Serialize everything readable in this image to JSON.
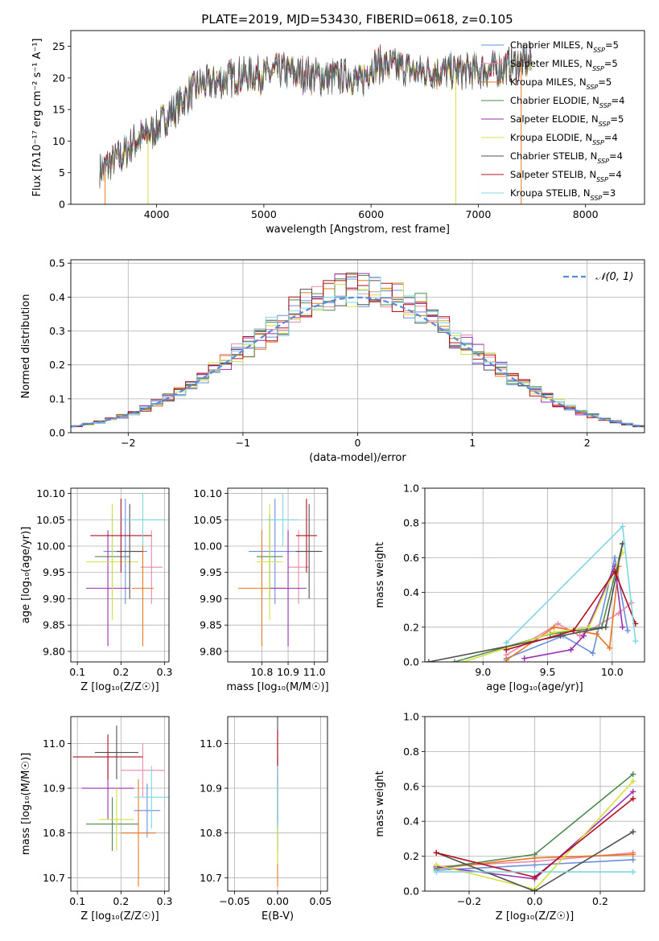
{
  "figure": {
    "title": "PLATE=2019, MJD=53430, FIBERID=0618, z=0.105"
  },
  "colors": {
    "Chabrier MILES": "#6a8fdc",
    "Salpeter MILES": "#e88aa8",
    "Kroupa MILES": "#e87722",
    "Chabrier ELODIE": "#4f8a4f",
    "Salpeter ELODIE": "#9a2fb0",
    "Kroupa ELODIE": "#d4e040",
    "Chabrier STELIB": "#505050",
    "Salpeter STELIB": "#b01020",
    "Kroupa STELIB": "#7fd6e0"
  },
  "chart_data": [
    {
      "id": "spectrum",
      "type": "line",
      "xlabel": "wavelength [Angstrom, rest frame]",
      "ylabel": "Flux [fλ10⁻¹⁷ erg cm⁻² s⁻¹ A⁻¹]",
      "xlim": [
        3200,
        8550
      ],
      "ylim": [
        0,
        27.5
      ],
      "xticks": [
        4000,
        5000,
        6000,
        7000,
        8000
      ],
      "yticks": [
        0,
        5,
        10,
        15,
        20,
        25
      ],
      "envelope": {
        "x": [
          3500,
          3600,
          3700,
          3800,
          3900,
          4000,
          4100,
          4200,
          4300,
          4400,
          4500,
          4600,
          4800,
          5000,
          5100,
          5200,
          5400,
          5600,
          5800,
          5900,
          6000,
          6200,
          6400,
          6600,
          6800,
          7000,
          7200,
          7400,
          7500
        ],
        "y": [
          5.5,
          7,
          8,
          10,
          11,
          12,
          14,
          15.5,
          17.5,
          19,
          19,
          19.5,
          20.5,
          20.5,
          21,
          21,
          20.5,
          20,
          20.5,
          19,
          22,
          22,
          21,
          21,
          21,
          21,
          21.5,
          22.5,
          22.5
        ]
      },
      "legend": {
        "position": "upper right",
        "entries": [
          "Chabrier MILES, N_SSP=5",
          "Salpeter MILES, N_SSP=5",
          "Kroupa MILES, N_SSP=5",
          "Chabrier ELODIE, N_SSP=4",
          "Salpeter ELODIE, N_SSP=5",
          "Kroupa ELODIE, N_SSP=4",
          "Chabrier STELIB, N_SSP=4",
          "Salpeter STELIB, N_SSP=4",
          "Kroupa STELIB, N_SSP=3"
        ]
      }
    },
    {
      "id": "residuals",
      "type": "line",
      "xlabel": "(data-model)/error",
      "ylabel": "Normed distribution",
      "xlim": [
        -2.5,
        2.5
      ],
      "ylim": [
        0,
        0.51
      ],
      "xticks": [
        -2,
        -1,
        0,
        1,
        2
      ],
      "yticks": [
        0.0,
        0.1,
        0.2,
        0.3,
        0.4,
        0.5
      ],
      "grid": true,
      "gaussian_label": "𝒩(0, 1)",
      "legend": {
        "position": "upper right"
      }
    },
    {
      "id": "age_vs_Z",
      "type": "scatter",
      "xlabel": "Z [log₁₀(Z/Z☉)]",
      "ylabel": "age  [log₁₀(age/yr)]",
      "xlim": [
        0.085,
        0.31
      ],
      "ylim": [
        9.78,
        10.11
      ],
      "xticks": [
        0.1,
        0.2,
        0.3
      ],
      "yticks": [
        9.8,
        9.85,
        9.9,
        9.95,
        10.0,
        10.05,
        10.1
      ],
      "grid": true,
      "points": [
        {
          "series": "Chabrier MILES",
          "x": 0.21,
          "xerr": 0.05,
          "y": 9.99,
          "yerr": 0.1
        },
        {
          "series": "Salpeter MILES",
          "x": 0.27,
          "xerr": 0.025,
          "y": 9.96,
          "yerr": 0.07
        },
        {
          "series": "Kroupa MILES",
          "x": 0.25,
          "xerr": 0.025,
          "y": 9.92,
          "yerr": 0.11
        },
        {
          "series": "Chabrier ELODIE",
          "x": 0.18,
          "xerr": 0.04,
          "y": 9.98,
          "yerr": 0.08
        },
        {
          "series": "Salpeter ELODIE",
          "x": 0.17,
          "xerr": 0.05,
          "y": 9.92,
          "yerr": 0.11
        },
        {
          "series": "Kroupa ELODIE",
          "x": 0.18,
          "xerr": 0.06,
          "y": 9.97,
          "yerr": 0.11
        },
        {
          "series": "Chabrier STELIB",
          "x": 0.22,
          "xerr": 0.03,
          "y": 9.99,
          "yerr": 0.09
        },
        {
          "series": "Salpeter STELIB",
          "x": 0.2,
          "xerr": 0.07,
          "y": 10.02,
          "yerr": 0.07
        },
        {
          "series": "Kroupa STELIB",
          "x": 0.25,
          "xerr": 0.05,
          "y": 10.05,
          "yerr": 0.05
        }
      ]
    },
    {
      "id": "age_vs_mass",
      "type": "scatter",
      "xlabel": "mass [log₁₀(M/M☉)]",
      "ylabel": "",
      "xlim": [
        10.67,
        11.05
      ],
      "ylim": [
        9.78,
        10.11
      ],
      "xticks": [
        10.8,
        10.9,
        11.0
      ],
      "yticks": [
        9.8,
        9.85,
        9.9,
        9.95,
        10.0,
        10.05,
        10.1
      ],
      "grid": true,
      "points": [
        {
          "series": "Chabrier MILES",
          "x": 10.85,
          "xerr": 0.1,
          "y": 9.99,
          "yerr": 0.1
        },
        {
          "series": "Salpeter MILES",
          "x": 10.94,
          "xerr": 0.04,
          "y": 9.96,
          "yerr": 0.07
        },
        {
          "series": "Kroupa MILES",
          "x": 10.8,
          "xerr": 0.09,
          "y": 9.92,
          "yerr": 0.11
        },
        {
          "series": "Chabrier ELODIE",
          "x": 10.83,
          "xerr": 0.05,
          "y": 9.98,
          "yerr": 0.08
        },
        {
          "series": "Salpeter ELODIE",
          "x": 10.9,
          "xerr": 0.07,
          "y": 9.92,
          "yerr": 0.11
        },
        {
          "series": "Kroupa ELODIE",
          "x": 10.83,
          "xerr": 0.05,
          "y": 9.97,
          "yerr": 0.11
        },
        {
          "series": "Chabrier STELIB",
          "x": 10.98,
          "xerr": 0.05,
          "y": 9.99,
          "yerr": 0.09
        },
        {
          "series": "Salpeter STELIB",
          "x": 10.97,
          "xerr": 0.04,
          "y": 10.02,
          "yerr": 0.07
        },
        {
          "series": "Kroupa STELIB",
          "x": 10.88,
          "xerr": 0.06,
          "y": 10.05,
          "yerr": 0.05
        }
      ]
    },
    {
      "id": "weight_vs_age",
      "type": "line",
      "xlabel": "age  [log₁₀(age/yr)]",
      "ylabel": "mass weight",
      "xlim": [
        8.55,
        10.25
      ],
      "ylim": [
        0,
        1
      ],
      "xticks": [
        9.0,
        9.5,
        10.0
      ],
      "yticks": [
        0.0,
        0.2,
        0.4,
        0.6,
        0.8,
        1.0
      ],
      "grid": true,
      "series": [
        {
          "name": "Chabrier MILES",
          "x": [
            9.18,
            9.62,
            9.85,
            10.02,
            10.12
          ],
          "y": [
            0.02,
            0.15,
            0.05,
            0.6,
            0.18
          ]
        },
        {
          "name": "Salpeter MILES",
          "x": [
            9.18,
            9.58,
            9.75,
            10.05,
            10.15
          ],
          "y": [
            0.04,
            0.22,
            0.15,
            0.28,
            0.34
          ]
        },
        {
          "name": "Kroupa MILES",
          "x": [
            9.18,
            9.55,
            9.88,
            9.98,
            10.05
          ],
          "y": [
            0.01,
            0.2,
            0.16,
            0.08,
            0.55
          ]
        },
        {
          "name": "Chabrier ELODIE",
          "x": [
            8.78,
            9.52,
            9.92,
            10.08
          ],
          "y": [
            0.0,
            0.16,
            0.2,
            0.68
          ]
        },
        {
          "name": "Salpeter ELODIE",
          "x": [
            9.32,
            9.68,
            9.78,
            10.02,
            10.08
          ],
          "y": [
            0.02,
            0.07,
            0.15,
            0.55,
            0.2
          ]
        },
        {
          "name": "Kroupa ELODIE",
          "x": [
            8.85,
            9.55,
            9.82,
            10.08
          ],
          "y": [
            0.0,
            0.17,
            0.2,
            0.63
          ]
        },
        {
          "name": "Chabrier STELIB",
          "x": [
            8.58,
            9.6,
            9.95,
            10.08
          ],
          "y": [
            0.0,
            0.15,
            0.2,
            0.68
          ]
        },
        {
          "name": "Salpeter STELIB",
          "x": [
            9.18,
            9.7,
            10.02,
            10.18
          ],
          "y": [
            0.07,
            0.18,
            0.52,
            0.22
          ]
        },
        {
          "name": "Kroupa STELIB",
          "x": [
            9.18,
            10.08,
            10.18
          ],
          "y": [
            0.11,
            0.78,
            0.12
          ]
        }
      ]
    },
    {
      "id": "mass_vs_Z",
      "type": "scatter",
      "xlabel": "Z [log₁₀(Z/Z☉)]",
      "ylabel": "mass [log₁₀(M/M☉)]",
      "xlim": [
        0.085,
        0.31
      ],
      "ylim": [
        10.67,
        11.06
      ],
      "xticks": [
        0.1,
        0.2,
        0.3
      ],
      "yticks": [
        10.7,
        10.8,
        10.9,
        11.0
      ],
      "grid": true,
      "points": [
        {
          "series": "Chabrier MILES",
          "x": 0.26,
          "xerr": 0.03,
          "y": 10.85,
          "yerr": 0.06
        },
        {
          "series": "Salpeter MILES",
          "x": 0.25,
          "xerr": 0.05,
          "y": 10.94,
          "yerr": 0.06
        },
        {
          "series": "Kroupa MILES",
          "x": 0.24,
          "xerr": 0.04,
          "y": 10.8,
          "yerr": 0.12
        },
        {
          "series": "Chabrier ELODIE",
          "x": 0.18,
          "xerr": 0.06,
          "y": 10.82,
          "yerr": 0.06
        },
        {
          "series": "Salpeter ELODIE",
          "x": 0.17,
          "xerr": 0.06,
          "y": 10.9,
          "yerr": 0.07
        },
        {
          "series": "Kroupa ELODIE",
          "x": 0.19,
          "xerr": 0.04,
          "y": 10.83,
          "yerr": 0.07
        },
        {
          "series": "Chabrier STELIB",
          "x": 0.19,
          "xerr": 0.05,
          "y": 10.98,
          "yerr": 0.06
        },
        {
          "series": "Salpeter STELIB",
          "x": 0.17,
          "xerr": 0.08,
          "y": 10.97,
          "yerr": 0.05
        },
        {
          "series": "Kroupa STELIB",
          "x": 0.27,
          "xerr": 0.04,
          "y": 10.88,
          "yerr": 0.07
        }
      ]
    },
    {
      "id": "mass_vs_EBV",
      "type": "scatter",
      "xlabel": "E(B-V)",
      "ylabel": "",
      "xlim": [
        -0.058,
        0.058
      ],
      "ylim": [
        10.67,
        11.06
      ],
      "xticks": [
        -0.05,
        0.0,
        0.05
      ],
      "yticks": [
        10.7,
        10.8,
        10.9,
        11.0
      ],
      "grid": true,
      "points": [
        {
          "series": "Chabrier MILES",
          "x": 0.0,
          "y": 10.85,
          "yerr": 0.08
        },
        {
          "series": "Salpeter MILES",
          "x": 0.0,
          "y": 10.94,
          "yerr": 0.06
        },
        {
          "series": "Kroupa MILES",
          "x": 0.0,
          "y": 10.8,
          "yerr": 0.12
        },
        {
          "series": "Chabrier ELODIE",
          "x": 0.0,
          "y": 10.82,
          "yerr": 0.06
        },
        {
          "series": "Salpeter ELODIE",
          "x": 0.0,
          "y": 10.9,
          "yerr": 0.07
        },
        {
          "series": "Kroupa ELODIE",
          "x": 0.0,
          "y": 10.83,
          "yerr": 0.1
        },
        {
          "series": "Chabrier STELIB",
          "x": 0.0,
          "y": 10.98,
          "yerr": 0.16
        },
        {
          "series": "Salpeter STELIB",
          "x": 0.0,
          "y": 10.97,
          "yerr": 0.06
        },
        {
          "series": "Kroupa STELIB",
          "x": 0.0,
          "y": 10.88,
          "yerr": 0.07
        }
      ]
    },
    {
      "id": "weight_vs_Z",
      "type": "line",
      "xlabel": "Z [log₁₀(Z/Z☉)]",
      "ylabel": "mass weight",
      "xlim": [
        -0.335,
        0.335
      ],
      "ylim": [
        0,
        1
      ],
      "xticks": [
        -0.2,
        0.0,
        0.2
      ],
      "yticks": [
        0.0,
        0.2,
        0.4,
        0.6,
        0.8,
        1.0
      ],
      "grid": true,
      "series": [
        {
          "name": "Chabrier MILES",
          "x": [
            -0.3,
            0.0,
            0.3
          ],
          "y": [
            0.12,
            0.15,
            0.18
          ]
        },
        {
          "name": "Salpeter MILES",
          "x": [
            -0.3,
            0.0,
            0.3
          ],
          "y": [
            0.14,
            0.17,
            0.22
          ]
        },
        {
          "name": "Kroupa MILES",
          "x": [
            -0.3,
            0.0,
            0.3
          ],
          "y": [
            0.13,
            0.19,
            0.21
          ]
        },
        {
          "name": "Chabrier ELODIE",
          "x": [
            -0.3,
            0.0,
            0.3
          ],
          "y": [
            0.13,
            0.21,
            0.67
          ]
        },
        {
          "name": "Salpeter ELODIE",
          "x": [
            -0.3,
            0.0,
            0.3
          ],
          "y": [
            0.14,
            0.07,
            0.57
          ]
        },
        {
          "name": "Kroupa ELODIE",
          "x": [
            -0.3,
            0.0,
            0.3
          ],
          "y": [
            0.15,
            0.01,
            0.63
          ]
        },
        {
          "name": "Chabrier STELIB",
          "x": [
            -0.3,
            0.0,
            0.3
          ],
          "y": [
            0.22,
            0.0,
            0.34
          ]
        },
        {
          "name": "Salpeter STELIB",
          "x": [
            -0.3,
            0.0,
            0.3
          ],
          "y": [
            0.22,
            0.08,
            0.53
          ]
        },
        {
          "name": "Kroupa STELIB",
          "x": [
            -0.3,
            0.0,
            0.3
          ],
          "y": [
            0.11,
            0.11,
            0.11
          ]
        }
      ]
    }
  ]
}
